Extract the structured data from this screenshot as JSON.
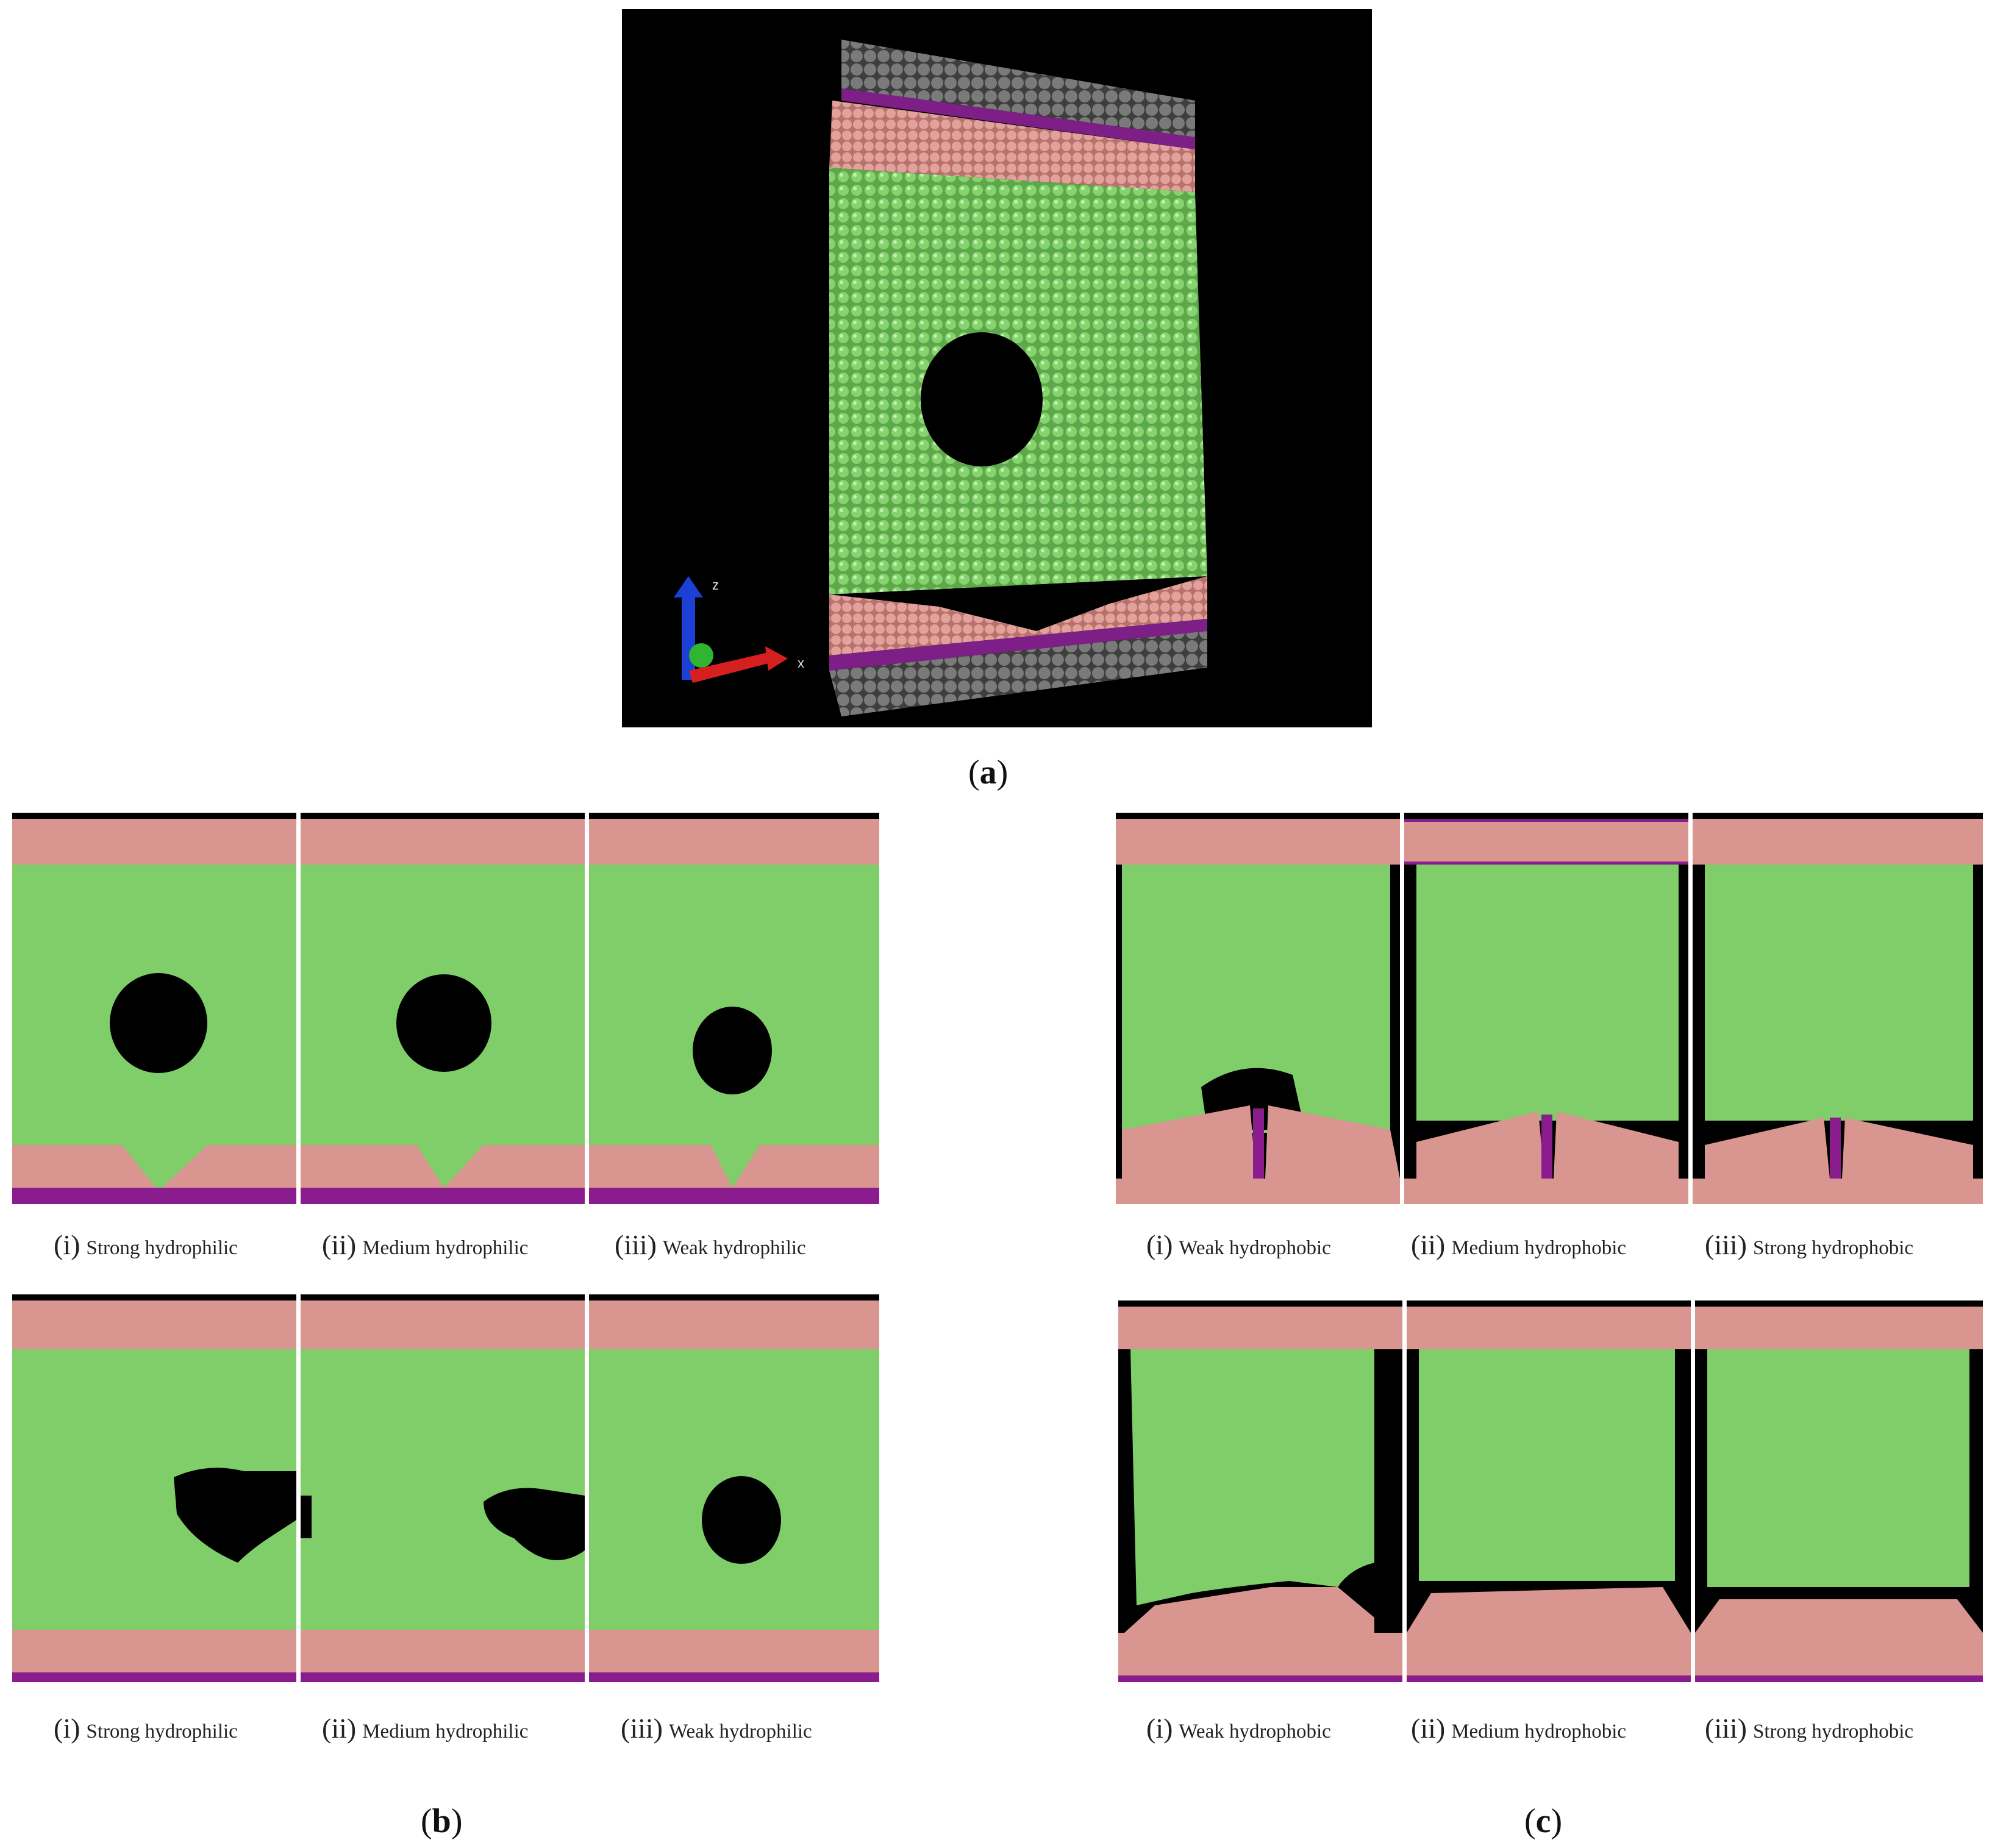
{
  "figure_labels": {
    "a": {
      "open": "(",
      "letter": "a",
      "close": ")"
    },
    "b": {
      "open": "(",
      "letter": "b",
      "close": ")"
    },
    "c": {
      "open": "(",
      "letter": "c",
      "close": ")"
    }
  },
  "axis_triad": {
    "z": "z",
    "x": "x"
  },
  "panel_b": {
    "row1": [
      {
        "num": "(i)",
        "text": "Strong hydrophilic"
      },
      {
        "num": "(ii)",
        "text": "Medium hydrophilic"
      },
      {
        "num": "(iii)",
        "text": "Weak hydrophilic"
      }
    ],
    "row2": [
      {
        "num": "(i)",
        "text": "Strong hydrophilic"
      },
      {
        "num": "(ii)",
        "text": "Medium hydrophilic"
      },
      {
        "num": "(iii)",
        "text": "Weak hydrophilic"
      }
    ]
  },
  "panel_c": {
    "row1": [
      {
        "num": "(i)",
        "text": "Weak hydrophobic"
      },
      {
        "num": "(ii)",
        "text": "Medium hydrophobic"
      },
      {
        "num": "(iii)",
        "text": "Strong hydrophobic"
      }
    ],
    "row2": [
      {
        "num": "(i)",
        "text": "Weak hydrophobic"
      },
      {
        "num": "(ii)",
        "text": "Medium hydrophobic"
      },
      {
        "num": "(iii)",
        "text": "Strong hydrophobic"
      }
    ]
  },
  "colors": {
    "background": "#000000",
    "fluid_atoms": "#7fce6a",
    "wall_atoms": "#d99590",
    "interface_layer": "#8a1c8e",
    "outer_layer": "#6e6e6e",
    "axis_z": "#1c3fd6",
    "axis_x": "#d62020",
    "axis_y": "#2fb52f"
  }
}
